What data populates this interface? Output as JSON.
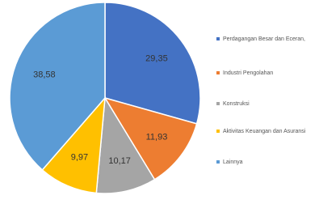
{
  "chart_data": {
    "type": "pie",
    "categories": [
      "Perdagangan Besar dan Eceran,",
      "Industri Pengolahan",
      "Konstruksi",
      "Aktivitas Keuangan dan Asuransi",
      "Lainnya"
    ],
    "values": [
      29.35,
      11.93,
      10.17,
      9.97,
      38.58
    ],
    "value_labels": [
      "29,35",
      "11,93",
      "10,17",
      "9,97",
      "38,58"
    ],
    "colors": [
      "#4472c4",
      "#ed7d31",
      "#a5a5a5",
      "#ffc000",
      "#5b9bd5"
    ],
    "legend": "right"
  }
}
